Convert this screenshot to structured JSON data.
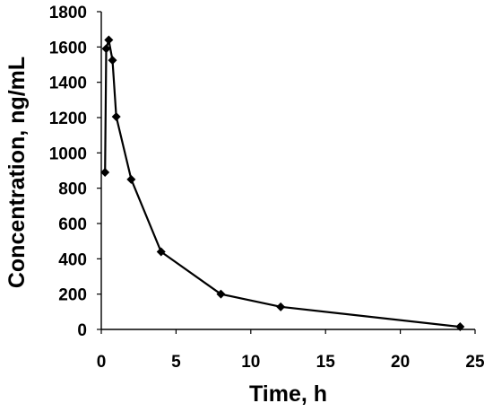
{
  "chart_data": {
    "type": "line",
    "xlabel": "Time, h",
    "ylabel": "Concentration, ng/mL",
    "xlim": [
      0,
      25
    ],
    "ylim": [
      0,
      1800
    ],
    "xticks": [
      0,
      5,
      10,
      15,
      20,
      25
    ],
    "yticks": [
      0,
      200,
      400,
      600,
      800,
      1000,
      1200,
      1400,
      1600,
      1800
    ],
    "grid": false,
    "legend": "none",
    "marker": "diamond",
    "color": "#000000",
    "series": [
      {
        "x": [
          0.25,
          0.33,
          0.5,
          0.75,
          1,
          2,
          4,
          8,
          12,
          24
        ],
        "y": [
          890,
          1590,
          1640,
          1525,
          1205,
          850,
          440,
          200,
          128,
          15
        ]
      }
    ]
  }
}
